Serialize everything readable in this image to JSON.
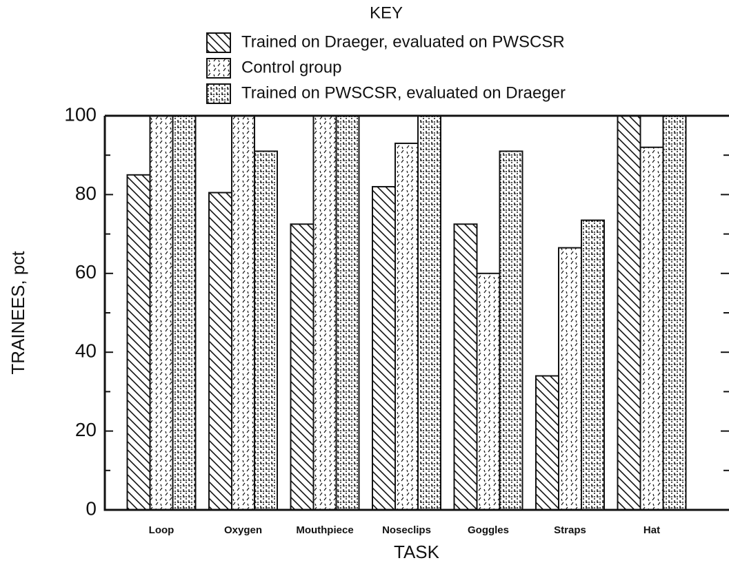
{
  "chart_data": {
    "type": "bar",
    "legend_title": "KEY",
    "x_label": "TASK",
    "y_label": "TRAINEES, pct",
    "categories": [
      "Loop",
      "Oxygen",
      "Mouthpiece",
      "Noseclips",
      "Goggles",
      "Straps",
      "Hat"
    ],
    "series": [
      {
        "name": "Trained on Draeger,  evaluated on PWSCSR",
        "color": "#111111",
        "pattern": "hatch",
        "values": [
          85,
          80.5,
          72.5,
          82,
          72.5,
          34,
          100
        ]
      },
      {
        "name": "Control group",
        "color": "#111111",
        "pattern": "dash",
        "values": [
          100,
          100,
          100,
          93,
          60,
          66.5,
          92
        ]
      },
      {
        "name": "Trained on PWSCSR,  evaluated on Draeger",
        "color": "#111111",
        "pattern": "stipple",
        "values": [
          100,
          91,
          100,
          100,
          91,
          73.5,
          100
        ]
      }
    ],
    "ylim": [
      0,
      100
    ],
    "yticks": [
      0,
      20,
      40,
      60,
      80,
      100
    ],
    "yminor": [
      10,
      30,
      50,
      70,
      90
    ],
    "legend": "top"
  }
}
